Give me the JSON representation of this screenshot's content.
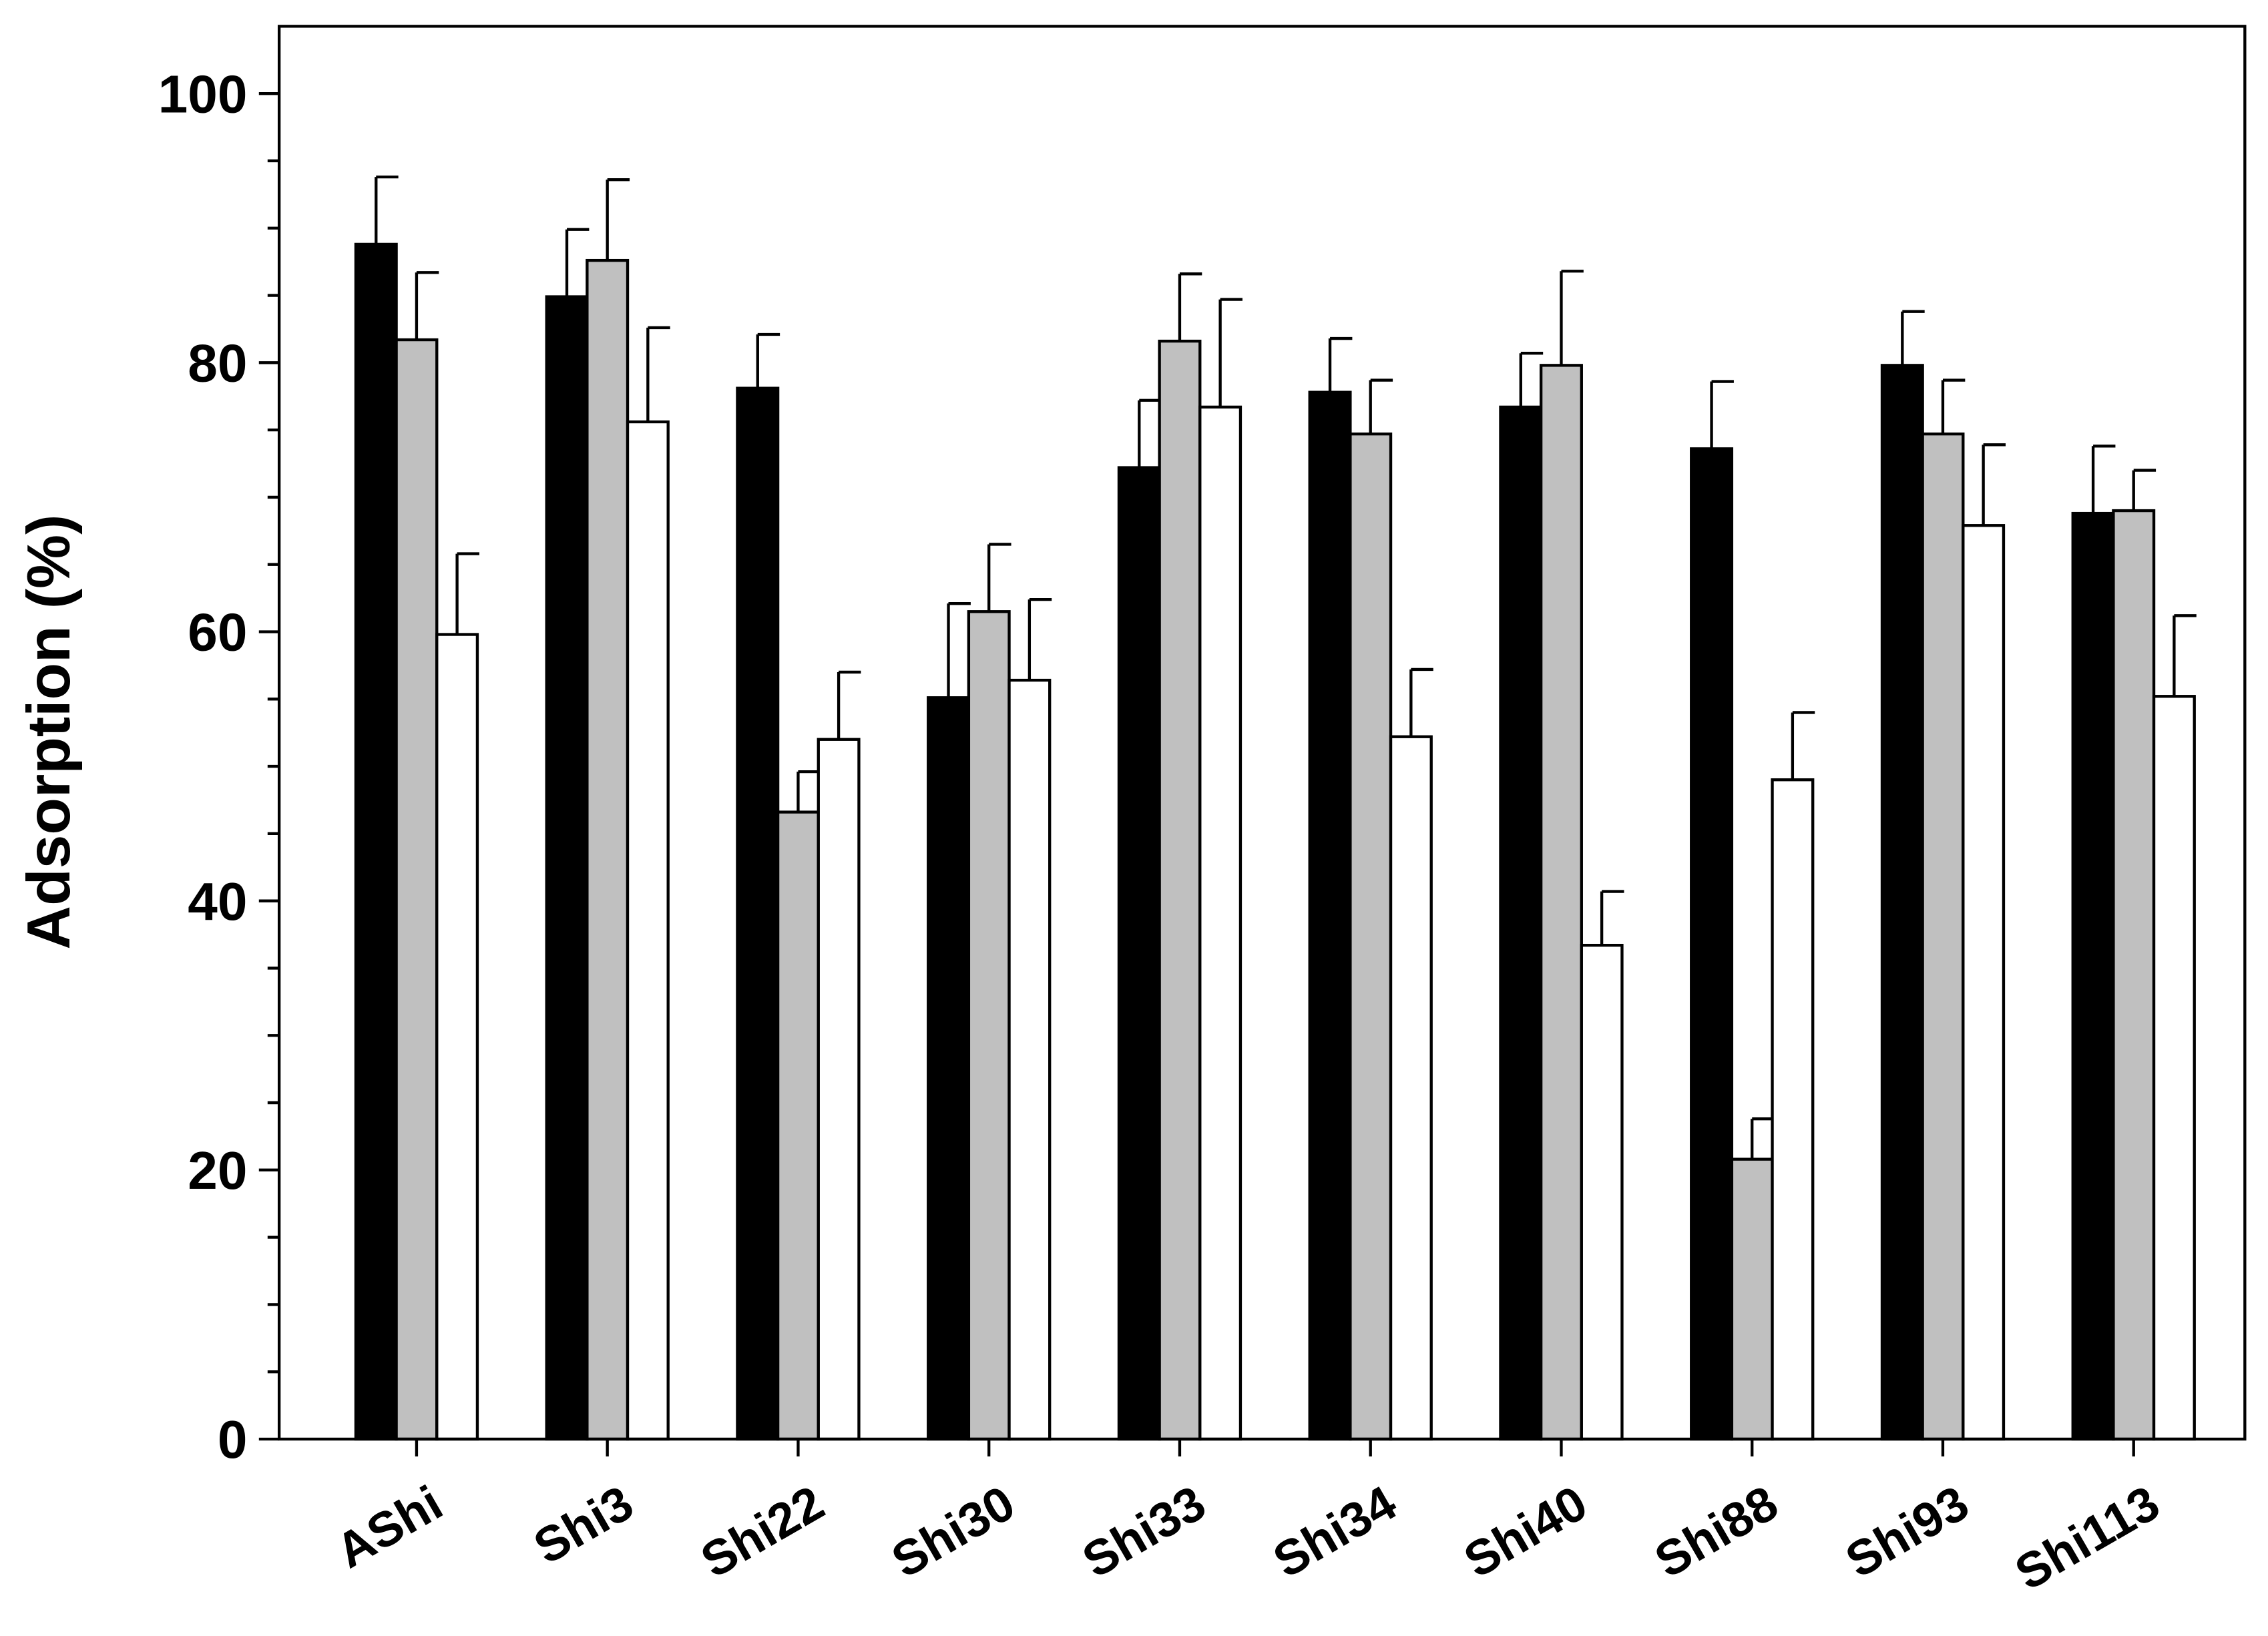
{
  "chart_data": {
    "type": "bar",
    "y_label": "Adsorption (%)",
    "categories": [
      "AShi",
      "Shi3",
      "Shi22",
      "Shi30",
      "Shi33",
      "Shi34",
      "Shi40",
      "Shi88",
      "Shi93",
      "Shi113"
    ],
    "series": [
      {
        "color": "#000000",
        "values": [
          88.8,
          84.9,
          78.1,
          55.1,
          72.2,
          77.8,
          76.7,
          73.6,
          79.8,
          68.8
        ],
        "errors": [
          5,
          5,
          4,
          7,
          5,
          4,
          4,
          5,
          4,
          5
        ]
      },
      {
        "color": "#c0c0c0",
        "values": [
          81.7,
          87.6,
          46.6,
          61.5,
          81.6,
          74.7,
          79.8,
          20.8,
          74.7,
          69.0
        ],
        "errors": [
          5,
          6,
          3,
          5,
          5,
          4,
          7,
          3,
          4,
          3
        ]
      },
      {
        "color": "#ffffff",
        "values": [
          59.8,
          75.6,
          52.0,
          56.4,
          76.7,
          52.2,
          36.7,
          49.0,
          67.9,
          55.2
        ],
        "errors": [
          6,
          7,
          5,
          6,
          8,
          5,
          4,
          5,
          6,
          6
        ]
      }
    ],
    "ylim": [
      0,
      105
    ],
    "yticks": [
      0,
      20,
      40,
      60,
      80,
      100
    ],
    "minor_yticks": [
      5,
      10,
      15,
      25,
      30,
      35,
      45,
      50,
      55,
      65,
      70,
      75,
      85,
      90,
      95
    ]
  }
}
